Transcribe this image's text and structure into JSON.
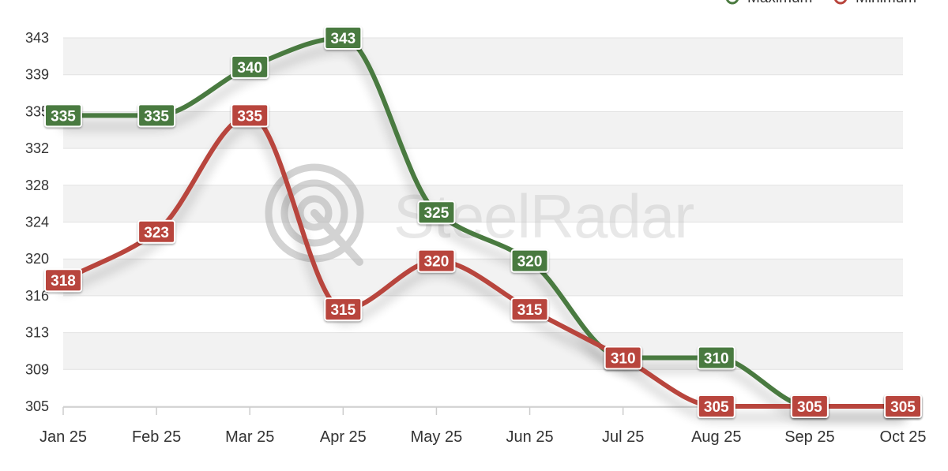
{
  "chart_data": {
    "type": "line",
    "title": "",
    "xlabel": "",
    "ylabel": "",
    "categories": [
      "Jan 25",
      "Feb 25",
      "Mar 25",
      "Apr 25",
      "May 25",
      "Jun 25",
      "Jul 25",
      "Aug 25",
      "Sep 25",
      "Oct 25"
    ],
    "y_ticks": [
      "305",
      "309",
      "313",
      "316",
      "320",
      "324",
      "328",
      "332",
      "335",
      "339",
      "343"
    ],
    "ylim": [
      305,
      343
    ],
    "grid": true,
    "legend_position": "top-right",
    "watermark": "SteelRadar",
    "series": [
      {
        "name": "Maximum",
        "color": "#4a7a3f",
        "values": [
          335,
          335,
          340,
          343,
          325,
          320,
          310,
          310,
          305,
          305
        ]
      },
      {
        "name": "Minimum",
        "color": "#b8443c",
        "values": [
          318,
          323,
          335,
          315,
          320,
          315,
          310,
          305,
          305,
          305
        ]
      }
    ]
  }
}
